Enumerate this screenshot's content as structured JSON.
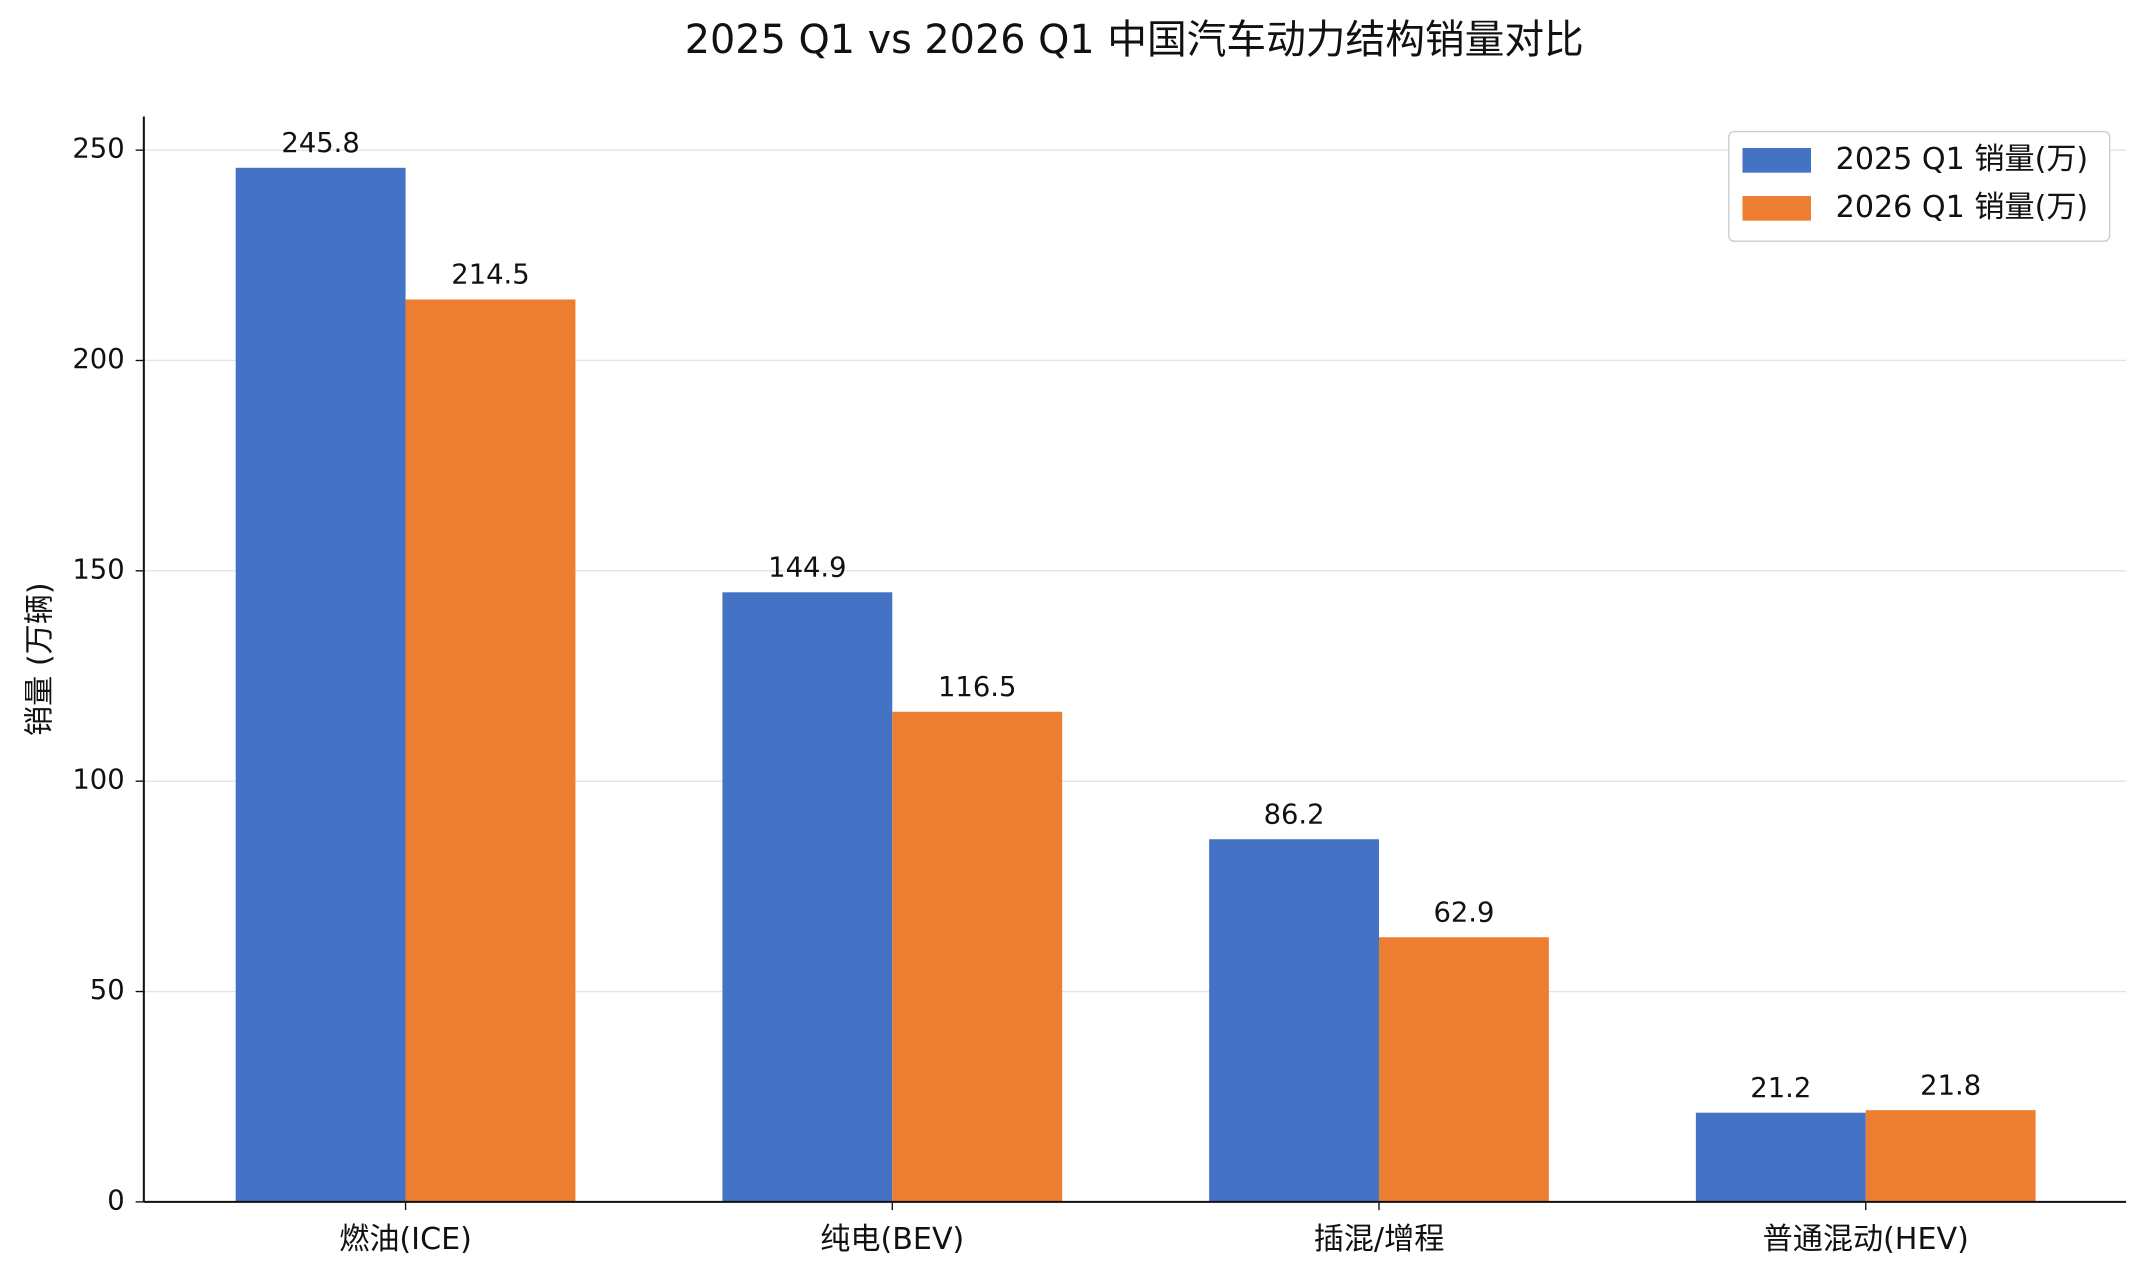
{
  "chart_data": {
    "type": "bar",
    "title": "2025 Q1 vs 2026 Q1 中国汽车动力结构销量对比",
    "y_label": "销量 (万辆)",
    "categories": [
      "燃油(ICE)",
      "纯电(BEV)",
      "插混/增程",
      "普通混动(HEV)"
    ],
    "series": [
      {
        "name": "2025 Q1 销量(万)",
        "color": "#4472c4",
        "values": [
          245.8,
          144.9,
          86.2,
          21.2
        ]
      },
      {
        "name": "2026 Q1 销量(万)",
        "color": "#ed7d31",
        "values": [
          214.5,
          116.5,
          62.9,
          21.8
        ]
      }
    ],
    "ylim": [
      0,
      258
    ],
    "yticks": [
      0,
      50,
      100,
      150,
      200,
      250
    ],
    "grid": true,
    "legend": "upper right"
  }
}
